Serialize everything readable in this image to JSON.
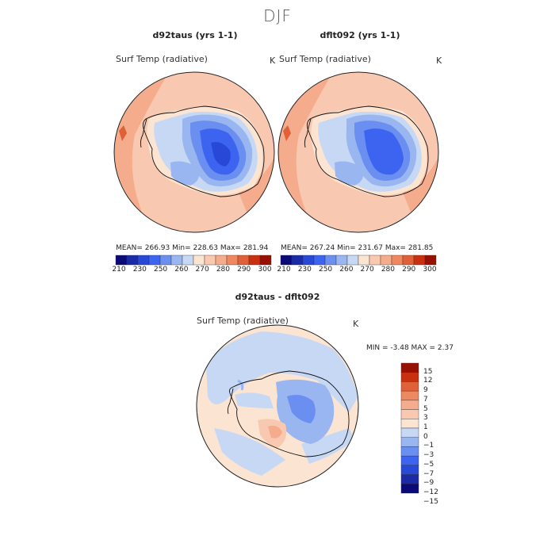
{
  "main_title": "DJF",
  "panels": [
    {
      "title": "d92taus (yrs 1-1)",
      "field": "Surf Temp (radiative)",
      "unit": "K",
      "stats": "MEAN= 266.93    Min= 228.63    Max= 281.94"
    },
    {
      "title": "dflt092 (yrs 1-1)",
      "field": "Surf Temp (radiative)",
      "unit": "K",
      "stats": "MEAN= 267.24    Min= 231.67    Max= 281.85"
    }
  ],
  "diff_panel": {
    "title": "d92taus - dflt092",
    "field": "Surf Temp (radiative)",
    "unit": "K",
    "stats": "MIN =    -3.48  MAX =     2.37"
  },
  "colors": {
    "abs_scale": [
      "#0a0a78",
      "#1a2aa8",
      "#2848d8",
      "#3c64f0",
      "#6a8ff0",
      "#9ab6f0",
      "#c6d8f4",
      "#fbe4d2",
      "#f8c8b0",
      "#f4ac8c",
      "#ee8860",
      "#e06038",
      "#c83010",
      "#961004"
    ],
    "diff_scale": [
      "#0a0a78",
      "#1a2aa8",
      "#2848d8",
      "#3c64f0",
      "#6a8ff0",
      "#9ab6f0",
      "#c6d8f4",
      "#fbe4d2",
      "#f8c8b0",
      "#f4ac8c",
      "#ee8860",
      "#e06038",
      "#c83010",
      "#961004"
    ]
  },
  "chart_data": [
    {
      "type": "heatmap",
      "title": "d92taus (yrs 1-1)",
      "subtitle": "Surf Temp (radiative)",
      "units": "K",
      "projection": "south polar stereographic",
      "mean": 266.93,
      "min": 228.63,
      "max": 281.94,
      "colorbar_ticks": [
        "210",
        "230",
        "250",
        "260",
        "270",
        "280",
        "290",
        "300"
      ],
      "colorbar_levels": [
        210,
        220,
        230,
        240,
        250,
        255,
        260,
        265,
        270,
        275,
        280,
        285,
        290,
        295,
        300
      ]
    },
    {
      "type": "heatmap",
      "title": "dflt092 (yrs 1-1)",
      "subtitle": "Surf Temp (radiative)",
      "units": "K",
      "projection": "south polar stereographic",
      "mean": 267.24,
      "min": 231.67,
      "max": 281.85,
      "colorbar_ticks": [
        "210",
        "230",
        "250",
        "260",
        "270",
        "280",
        "290",
        "300"
      ],
      "colorbar_levels": [
        210,
        220,
        230,
        240,
        250,
        255,
        260,
        265,
        270,
        275,
        280,
        285,
        290,
        295,
        300
      ]
    },
    {
      "type": "heatmap",
      "title": "d92taus - dflt092",
      "subtitle": "Surf Temp (radiative)",
      "units": "K",
      "projection": "south polar stereographic",
      "min": -3.48,
      "max": 2.37,
      "colorbar_ticks": [
        "15",
        "12",
        "9",
        "7",
        "5",
        "3",
        "1",
        "0",
        "−1",
        "−3",
        "−5",
        "−7",
        "−9",
        "−12",
        "−15"
      ]
    }
  ]
}
